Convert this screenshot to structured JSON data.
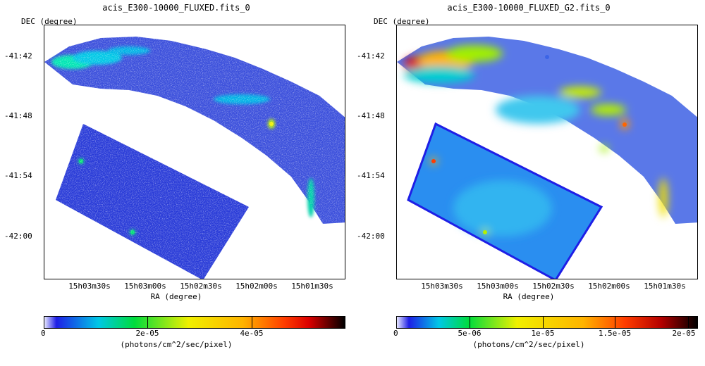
{
  "chart_data": [
    {
      "type": "heatmap",
      "title": "acis_E300-10000_FLUXED.fits_0",
      "ylabel": "DEC (degree)",
      "xlabel": "RA (degree)",
      "colorbar_label": "(photons/cm^2/sec/pixel)",
      "y_ticks": [
        "-41:42",
        "-41:48",
        "-41:54",
        "-42:00"
      ],
      "x_ticks": [
        "15h03m30s",
        "15h03m00s",
        "15h02m30s",
        "15h02m00s",
        "15h01m30s"
      ],
      "colorbar_ticks": [
        "0",
        "2e-05",
        "4e-05"
      ],
      "colorbar_range": [
        0,
        5.8e-05
      ],
      "colormap": [
        "#ffffff",
        "#1e1ee6",
        "#00c8e6",
        "#00dc3c",
        "#f0f000",
        "#ffb400",
        "#ff3c00",
        "#dc0000",
        "#000000"
      ],
      "smoothed": false
    },
    {
      "type": "heatmap",
      "title": "acis_E300-10000_FLUXED_G2.fits_0",
      "ylabel": "DEC (degree)",
      "xlabel": "RA (degree)",
      "colorbar_label": "(photons/cm^2/sec/pixel)",
      "y_ticks": [
        "-41:42",
        "-41:48",
        "-41:54",
        "-42:00"
      ],
      "x_ticks": [
        "15h03m30s",
        "15h03m00s",
        "15h02m30s",
        "15h02m00s",
        "15h01m30s"
      ],
      "colorbar_ticks": [
        "0",
        "5e-06",
        "1e-05",
        "1.5e-05",
        "2e-05"
      ],
      "colorbar_range": [
        0,
        2.1e-05
      ],
      "colormap": [
        "#ffffff",
        "#1e1ee6",
        "#00c8e6",
        "#00dc3c",
        "#f0f000",
        "#ffb400",
        "#ff3c00",
        "#dc0000",
        "#000000"
      ],
      "smoothed": true
    }
  ]
}
